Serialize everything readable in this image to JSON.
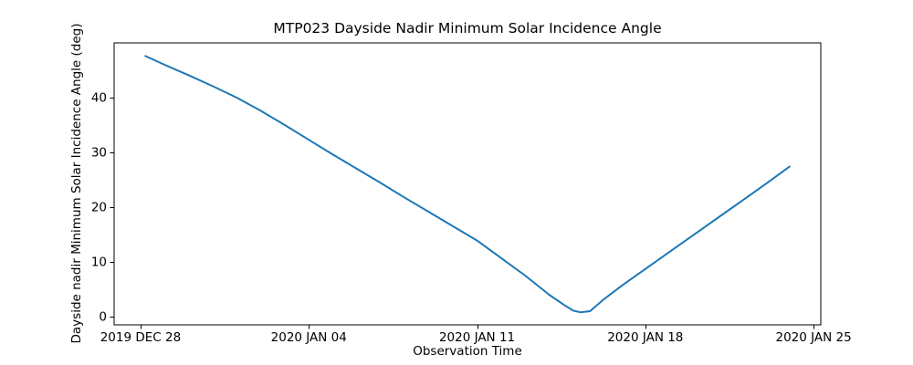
{
  "chart_data": {
    "type": "line",
    "title": "MTP023 Dayside Nadir Minimum Solar Incidence Angle",
    "xlabel": "Observation Time",
    "ylabel": "Dayside nadir Minimum Solar Incidence Angle (deg)",
    "grid": false,
    "legend": null,
    "x_axis": {
      "tick_labels": [
        "2019 DEC 28",
        "2020 JAN 04",
        "2020 JAN 11",
        "2020 JAN 18",
        "2020 JAN 25"
      ],
      "tick_positions_days": [
        0,
        7,
        14,
        21,
        28
      ],
      "xlim_days": [
        -1.1,
        28.3
      ]
    },
    "y_axis": {
      "tick_labels": [
        "0",
        "10",
        "20",
        "30",
        "40"
      ],
      "ticks": [
        0,
        10,
        20,
        30,
        40
      ],
      "ylim": [
        -1.5,
        50.0
      ]
    },
    "series": [
      {
        "name": "Dayside nadir minimum solar incidence angle (deg)",
        "color": "#1f77b4",
        "x_days_since_2019_dec_28": [
          0.2,
          1,
          2,
          3,
          4,
          5,
          6,
          7,
          8,
          9,
          10,
          11,
          12,
          13,
          14,
          15,
          16,
          17,
          17.6,
          18.0,
          18.3,
          18.7,
          19.2,
          20,
          21,
          22,
          23,
          24,
          25,
          26,
          27
        ],
        "values": [
          47.6,
          46.0,
          44.1,
          42.1,
          40.0,
          37.6,
          35.0,
          32.3,
          29.6,
          27.0,
          24.4,
          21.7,
          19.1,
          16.5,
          13.9,
          10.7,
          7.5,
          4.0,
          2.2,
          1.1,
          0.8,
          1.0,
          2.9,
          5.6,
          8.7,
          11.8,
          14.9,
          18.0,
          21.1,
          24.2,
          27.4
        ]
      }
    ],
    "colors": {
      "line": "#1f77b4",
      "text": "#000000",
      "spine": "#000000",
      "background": "#ffffff"
    }
  }
}
